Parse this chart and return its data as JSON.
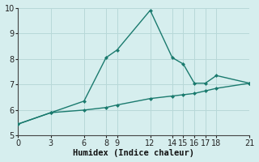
{
  "xlabel": "Humidex (Indice chaleur)",
  "bg_color": "#d6eeee",
  "line_color": "#1a7a6e",
  "grid_color": "#b8d8d8",
  "ylim": [
    5,
    10
  ],
  "xlim": [
    0,
    21
  ],
  "xticks": [
    0,
    3,
    6,
    8,
    9,
    12,
    14,
    15,
    16,
    17,
    18,
    21
  ],
  "yticks": [
    5,
    6,
    7,
    8,
    9,
    10
  ],
  "line1_x": [
    0,
    3,
    6,
    8,
    9,
    12,
    14,
    15,
    16,
    17,
    18,
    21
  ],
  "line1_y": [
    5.45,
    5.9,
    6.35,
    8.05,
    8.35,
    9.9,
    8.05,
    7.8,
    7.05,
    7.05,
    7.35,
    7.05
  ],
  "line2_x": [
    0,
    3,
    6,
    8,
    9,
    12,
    14,
    15,
    16,
    17,
    18,
    21
  ],
  "line2_y": [
    5.45,
    5.9,
    6.0,
    6.1,
    6.2,
    6.45,
    6.55,
    6.6,
    6.65,
    6.75,
    6.85,
    7.05
  ],
  "tick_fontsize": 7,
  "xlabel_fontsize": 7.5
}
